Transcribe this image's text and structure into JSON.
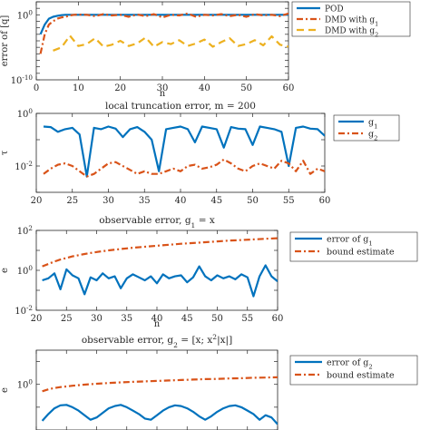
{
  "chart_data": [
    {
      "type": "line",
      "ylabel": "error of [q]",
      "xlabel": "n",
      "xlim": [
        0,
        60
      ],
      "ylim_log10": [
        -10,
        2
      ],
      "xticks": [
        "0",
        "10",
        "20",
        "30",
        "40",
        "50",
        "60"
      ],
      "yticks": [
        "10^0",
        "10^-10"
      ],
      "legend_position": "top-right",
      "series": [
        {
          "name": "POD",
          "color": "#0072bd",
          "style": "solid",
          "x": [
            1,
            2,
            3,
            4,
            5,
            6,
            7,
            8,
            9,
            10,
            12,
            14,
            16,
            18,
            20,
            22,
            24,
            26,
            28,
            30,
            32,
            34,
            36,
            38,
            40,
            42,
            44,
            46,
            48,
            50,
            52,
            54,
            56,
            58,
            60
          ],
          "log10": [
            -3,
            -1.5,
            -0.6,
            -0.3,
            -0.15,
            -0.05,
            0,
            0,
            0,
            0,
            0,
            0,
            0,
            0,
            0,
            0,
            0,
            0,
            0,
            0,
            0,
            0,
            0,
            0,
            0,
            0,
            0,
            0,
            0,
            0,
            0,
            0,
            0,
            0,
            0
          ]
        },
        {
          "name": "DMD with g_1",
          "color": "#d95319",
          "style": "dashdot",
          "x": [
            1,
            2,
            3,
            4,
            5,
            6,
            7,
            8,
            9,
            10,
            12,
            14,
            16,
            18,
            20,
            22,
            24,
            26,
            28,
            30,
            32,
            34,
            36,
            38,
            40,
            42,
            44,
            46,
            48,
            50,
            52,
            54,
            56,
            58,
            60
          ],
          "log10": [
            -6,
            -3,
            -1.5,
            -1,
            -0.6,
            -0.4,
            -0.3,
            -0.1,
            0,
            0.05,
            0,
            -0.2,
            0.1,
            -0.1,
            0,
            -0.3,
            0.05,
            -0.2,
            0.1,
            -0.4,
            0,
            -0.1,
            0.2,
            -0.3,
            0,
            -0.1,
            0.1,
            -0.2,
            0,
            -0.3,
            0.1,
            -0.1,
            0,
            -0.2,
            0.2
          ]
        },
        {
          "name": "DMD with g_2",
          "color": "#edb120",
          "style": "dashed",
          "x": [
            4,
            6,
            8,
            10,
            12,
            14,
            16,
            18,
            20,
            22,
            24,
            26,
            28,
            30,
            32,
            34,
            36,
            38,
            40,
            42,
            44,
            46,
            48,
            50,
            52,
            54,
            56,
            58,
            60
          ],
          "log10": [
            -5.5,
            -5,
            -3.2,
            -4.8,
            -4.5,
            -3.6,
            -4.9,
            -4.6,
            -4.0,
            -4.8,
            -4.4,
            -3.5,
            -4.9,
            -4.2,
            -4.5,
            -3.9,
            -4.8,
            -4.4,
            -3.8,
            -4.9,
            -4.2,
            -3.6,
            -4.8,
            -4.5,
            -3.9,
            -4.7,
            -3.3,
            -4.6,
            -4.9
          ]
        }
      ]
    },
    {
      "type": "line",
      "title": "local truncation error, m = 200",
      "ylabel": "τ",
      "xlim": [
        20,
        60
      ],
      "ylim_log10": [
        -3,
        0
      ],
      "xticks": [
        "20",
        "25",
        "30",
        "35",
        "40",
        "45",
        "50",
        "55",
        "60"
      ],
      "yticks": [
        "10^0",
        "10^-2"
      ],
      "legend_position": "right",
      "series": [
        {
          "name": "g_1",
          "color": "#0072bd",
          "style": "solid",
          "x": [
            21,
            22,
            23,
            24,
            25,
            26,
            27,
            28,
            29,
            30,
            31,
            32,
            33,
            34,
            35,
            36,
            37,
            38,
            39,
            40,
            41,
            42,
            43,
            44,
            45,
            46,
            47,
            48,
            49,
            50,
            51,
            52,
            53,
            54,
            55,
            56,
            57,
            58,
            59,
            60
          ],
          "log10": [
            -0.5,
            -0.52,
            -0.7,
            -0.6,
            -0.55,
            -0.8,
            -2.4,
            -0.55,
            -0.6,
            -0.5,
            -0.58,
            -0.9,
            -0.6,
            -0.52,
            -0.7,
            -1.0,
            -2.2,
            -0.6,
            -0.55,
            -0.5,
            -0.6,
            -1.1,
            -0.5,
            -0.55,
            -0.6,
            -1.3,
            -0.52,
            -0.58,
            -0.6,
            -1.2,
            -0.5,
            -0.55,
            -0.6,
            -0.7,
            -2.0,
            -0.55,
            -0.5,
            -0.58,
            -0.6,
            -0.85
          ]
        },
        {
          "name": "g_2",
          "color": "#d95319",
          "style": "dashdot",
          "x": [
            21,
            22,
            23,
            24,
            25,
            26,
            27,
            28,
            29,
            30,
            31,
            32,
            33,
            34,
            35,
            36,
            37,
            38,
            39,
            40,
            41,
            42,
            43,
            44,
            45,
            46,
            47,
            48,
            49,
            50,
            51,
            52,
            53,
            54,
            55,
            56,
            57,
            58,
            59,
            60
          ],
          "log10": [
            -2.3,
            -2.1,
            -1.95,
            -1.9,
            -2.0,
            -2.2,
            -2.4,
            -2.3,
            -2.1,
            -1.9,
            -1.85,
            -2.0,
            -2.15,
            -2.3,
            -2.2,
            -2.3,
            -2.3,
            -2.2,
            -2.1,
            -2.2,
            -2.0,
            -1.95,
            -2.1,
            -2.05,
            -1.95,
            -1.75,
            -1.9,
            -2.1,
            -2.2,
            -2.0,
            -1.9,
            -2.0,
            -2.1,
            -1.8,
            -1.9,
            -2.2,
            -1.8,
            -2.3,
            -2.1,
            -2.2
          ]
        }
      ]
    },
    {
      "type": "line",
      "title": "observable error, g_1 = x",
      "ylabel": "e",
      "xlabel": "n",
      "xlim": [
        20,
        60
      ],
      "ylim_log10": [
        -2,
        2
      ],
      "xticks": [
        "20",
        "25",
        "30",
        "35",
        "40",
        "45",
        "50",
        "55",
        "60"
      ],
      "yticks": [
        "10^2",
        "10^0",
        "10^-2"
      ],
      "legend_position": "right",
      "series": [
        {
          "name": "error of g_1",
          "color": "#0072bd",
          "style": "solid",
          "x": [
            21,
            22,
            23,
            24,
            25,
            26,
            27,
            28,
            29,
            30,
            31,
            32,
            33,
            34,
            35,
            36,
            37,
            38,
            39,
            40,
            41,
            42,
            43,
            44,
            45,
            46,
            47,
            48,
            49,
            50,
            51,
            52,
            53,
            54,
            55,
            56,
            57,
            58,
            59,
            60
          ],
          "log10": [
            -0.5,
            -0.4,
            -0.15,
            -0.95,
            0.05,
            -0.25,
            -0.4,
            -1.2,
            -0.35,
            -0.5,
            -0.15,
            -0.4,
            -0.3,
            -0.9,
            -0.4,
            -0.2,
            -0.35,
            -0.5,
            -0.3,
            -0.65,
            -0.2,
            -0.4,
            -0.3,
            -0.25,
            -0.6,
            -0.35,
            0.2,
            -0.3,
            -0.5,
            -0.25,
            -0.4,
            -0.3,
            -0.45,
            -0.2,
            -0.35,
            -1.3,
            -0.3,
            0.25,
            -0.3,
            -0.55
          ]
        },
        {
          "name": "bound estimate",
          "color": "#d95319",
          "style": "dashdot",
          "x": [
            21,
            22,
            23,
            24,
            25,
            26,
            28,
            30,
            32,
            34,
            36,
            38,
            40,
            42,
            44,
            46,
            48,
            50,
            52,
            54,
            56,
            58,
            60
          ],
          "log10": [
            0.2,
            0.32,
            0.44,
            0.54,
            0.62,
            0.7,
            0.82,
            0.92,
            1.0,
            1.07,
            1.13,
            1.18,
            1.23,
            1.28,
            1.33,
            1.37,
            1.41,
            1.45,
            1.49,
            1.52,
            1.55,
            1.58,
            1.61
          ]
        }
      ]
    },
    {
      "type": "line",
      "title": "observable error, g_2 = [x; x^2|x|]",
      "ylabel": "e",
      "xlim": [
        20,
        60
      ],
      "ylim_log10": [
        -2,
        1.5
      ],
      "xticks": [
        "20",
        "25",
        "30",
        "35",
        "40",
        "45",
        "50",
        "55",
        "60"
      ],
      "yticks": [
        "10^0"
      ],
      "legend_position": "right",
      "series": [
        {
          "name": "error of g_2",
          "color": "#0072bd",
          "style": "solid",
          "x": [
            21,
            22,
            23,
            24,
            25,
            26,
            27,
            28,
            29,
            30,
            31,
            32,
            33,
            34,
            35,
            36,
            37,
            38,
            39,
            40,
            41,
            42,
            43,
            44,
            45,
            46,
            47,
            48,
            49,
            50,
            51,
            52,
            53,
            54,
            55,
            56,
            57,
            58,
            59,
            60
          ],
          "log10": [
            -1.6,
            -1.3,
            -1.05,
            -0.92,
            -0.9,
            -1.0,
            -1.15,
            -1.35,
            -1.55,
            -1.45,
            -1.25,
            -1.05,
            -0.95,
            -0.9,
            -1.0,
            -1.15,
            -1.3,
            -1.5,
            -1.55,
            -1.35,
            -1.15,
            -1.0,
            -0.92,
            -0.95,
            -1.05,
            -1.2,
            -1.4,
            -1.55,
            -1.4,
            -1.2,
            -1.05,
            -0.95,
            -0.92,
            -1.0,
            -1.15,
            -1.3,
            -1.55,
            -1.35,
            -1.45,
            -1.75
          ]
        },
        {
          "name": "bound estimate",
          "color": "#d95319",
          "style": "dashdot",
          "x": [
            21,
            22,
            23,
            24,
            25,
            26,
            28,
            30,
            32,
            34,
            36,
            38,
            40,
            42,
            44,
            46,
            48,
            50,
            52,
            54,
            56,
            58,
            60
          ],
          "log10": [
            -0.3,
            -0.22,
            -0.16,
            -0.12,
            -0.09,
            -0.06,
            -0.01,
            0.03,
            0.06,
            0.09,
            0.11,
            0.13,
            0.15,
            0.17,
            0.19,
            0.21,
            0.23,
            0.24,
            0.26,
            0.27,
            0.29,
            0.3,
            0.31
          ]
        }
      ]
    }
  ]
}
